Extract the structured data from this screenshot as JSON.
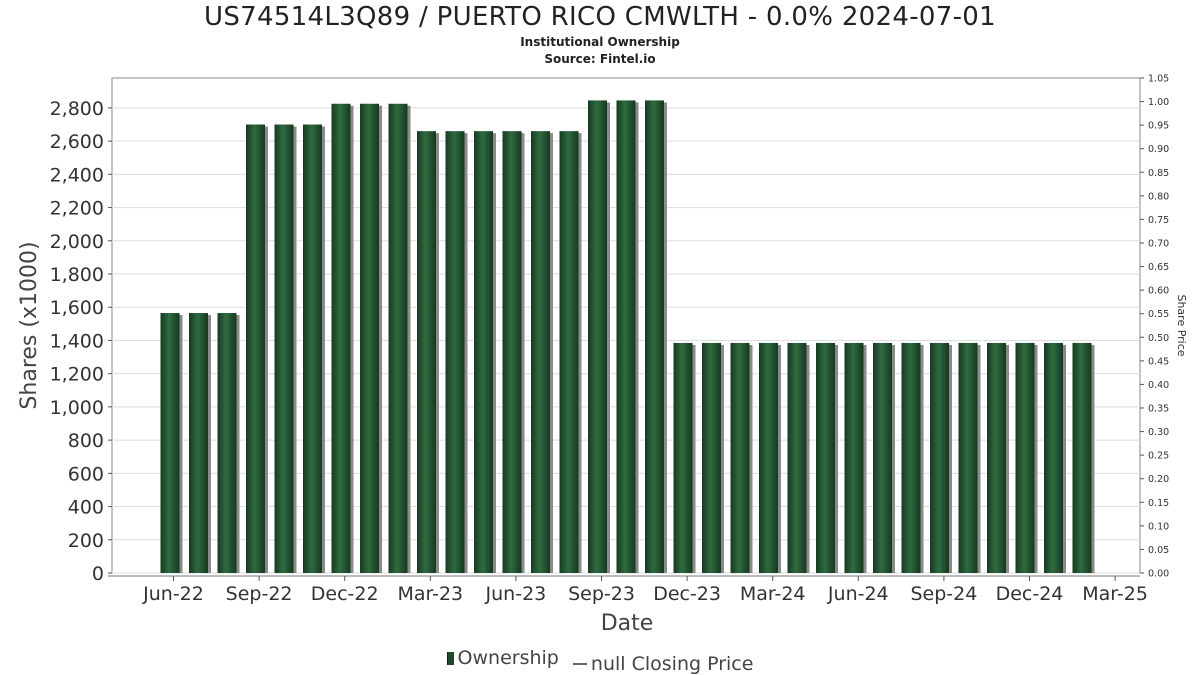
{
  "header": {
    "title": "US74514L3Q89 / PUERTO RICO CMWLTH - 0.0% 2024-07-01",
    "subtitle": "Institutional Ownership",
    "source": "Source: Fintel.io"
  },
  "legend": {
    "ownership": "Ownership",
    "price": "null Closing Price"
  },
  "colors": {
    "bar": "#1f4a2c",
    "bar_highlight": "#2f6b40",
    "bar_shadow": "#8a8a8a",
    "grid": "#dddddd"
  },
  "chart_data": {
    "type": "bar",
    "xlabel": "Date",
    "ylabel": "Shares (x1000)",
    "y2label": "Share Price",
    "ylim": [
      0,
      2980
    ],
    "y2lim": [
      0,
      1.05
    ],
    "yticks": [
      0,
      200,
      400,
      600,
      800,
      1000,
      1200,
      1400,
      1600,
      1800,
      2000,
      2200,
      2400,
      2600,
      2800
    ],
    "ytick_labels": [
      "0",
      "200",
      "400",
      "600",
      "800",
      "1,000",
      "1,200",
      "1,400",
      "1,600",
      "1,800",
      "2,000",
      "2,200",
      "2,400",
      "2,600",
      "2,800"
    ],
    "y2ticks": [
      "0.00",
      "0.05",
      "0.10",
      "0.15",
      "0.20",
      "0.25",
      "0.30",
      "0.35",
      "0.40",
      "0.45",
      "0.50",
      "0.55",
      "0.60",
      "0.65",
      "0.70",
      "0.75",
      "0.80",
      "0.85",
      "0.90",
      "0.95",
      "1.00",
      "1.05"
    ],
    "xticks": [
      "Jun-22",
      "Sep-22",
      "Dec-22",
      "Mar-23",
      "Jun-23",
      "Sep-23",
      "Dec-23",
      "Mar-24",
      "Jun-24",
      "Sep-24",
      "Dec-24",
      "Mar-25"
    ],
    "grid": true,
    "legend_position": "bottom",
    "series": [
      {
        "name": "Ownership",
        "values": [
          1565,
          1565,
          1565,
          2700,
          2700,
          2700,
          2825,
          2825,
          2825,
          2660,
          2660,
          2660,
          2660,
          2660,
          2660,
          2845,
          2845,
          2845,
          1385,
          1385,
          1385,
          1385,
          1385,
          1385,
          1385,
          1385,
          1385,
          1385,
          1385,
          1385,
          1385,
          1385,
          1385
        ]
      }
    ]
  }
}
